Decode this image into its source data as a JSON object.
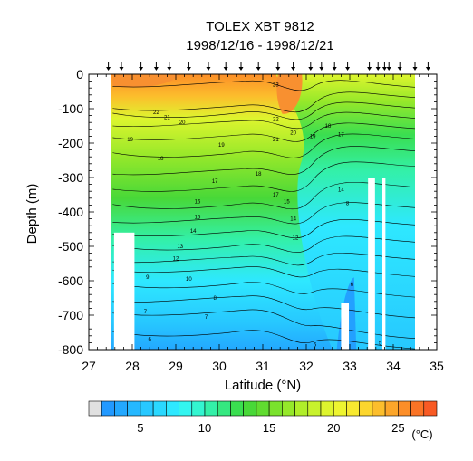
{
  "chart_data": {
    "type": "heatmap",
    "title": "TOLEX XBT 9812",
    "subtitle": "1998/12/16 - 1998/12/21",
    "xlabel": "Latitude (°N)",
    "ylabel": "Depth (m)",
    "xlim": [
      27,
      35
    ],
    "ylim": [
      -800,
      0
    ],
    "xticks": [
      27,
      28,
      29,
      30,
      31,
      32,
      33,
      34,
      35
    ],
    "yticks": [
      0,
      -100,
      -200,
      -300,
      -400,
      -500,
      -600,
      -700,
      -800
    ],
    "station_latitudes": [
      27.45,
      27.75,
      28.2,
      28.55,
      28.85,
      29.3,
      29.75,
      30.15,
      30.5,
      30.9,
      31.35,
      31.7,
      32.1,
      32.35,
      32.65,
      32.95,
      33.45,
      33.65,
      33.8,
      33.9,
      34.15,
      34.5,
      34.8
    ],
    "colorbar": {
      "unit": "(°C)",
      "min": 2,
      "max": 28,
      "step": 1,
      "ticks": [
        5,
        10,
        15,
        20,
        25
      ],
      "colors": [
        "#2299ff",
        "#23a8ff",
        "#25b8ff",
        "#27c8ff",
        "#2ad8ff",
        "#2ee8ff",
        "#33f5f0",
        "#33f5d0",
        "#33f0a8",
        "#35e880",
        "#3ade50",
        "#48d838",
        "#60dc30",
        "#7ae22c",
        "#95e82a",
        "#b0ee2a",
        "#c8f22c",
        "#def52e",
        "#eef530",
        "#f8ea30",
        "#fcd62e",
        "#fcbe2c",
        "#fca62a",
        "#fc8e28",
        "#fa7426",
        "#f85a24"
      ]
    },
    "contour_labels": [
      {
        "lat": 28.55,
        "depth": -110,
        "value": "22"
      },
      {
        "lat": 28.8,
        "depth": -125,
        "value": "21"
      },
      {
        "lat": 29.15,
        "depth": -140,
        "value": "20"
      },
      {
        "lat": 27.95,
        "depth": -190,
        "value": "19"
      },
      {
        "lat": 30.05,
        "depth": -205,
        "value": "19"
      },
      {
        "lat": 28.65,
        "depth": -245,
        "value": "18"
      },
      {
        "lat": 30.9,
        "depth": -290,
        "value": "18"
      },
      {
        "lat": 29.9,
        "depth": -310,
        "value": "17"
      },
      {
        "lat": 31.3,
        "depth": -350,
        "value": "17"
      },
      {
        "lat": 29.5,
        "depth": -370,
        "value": "16"
      },
      {
        "lat": 29.5,
        "depth": -415,
        "value": "15"
      },
      {
        "lat": 29.4,
        "depth": -455,
        "value": "14"
      },
      {
        "lat": 29.1,
        "depth": -500,
        "value": "13"
      },
      {
        "lat": 29.0,
        "depth": -535,
        "value": "12"
      },
      {
        "lat": 29.3,
        "depth": -595,
        "value": "10"
      },
      {
        "lat": 28.35,
        "depth": -590,
        "value": "9"
      },
      {
        "lat": 29.9,
        "depth": -650,
        "value": "8"
      },
      {
        "lat": 28.3,
        "depth": -690,
        "value": "7"
      },
      {
        "lat": 29.7,
        "depth": -705,
        "value": "7"
      },
      {
        "lat": 28.4,
        "depth": -770,
        "value": "6"
      },
      {
        "lat": 31.3,
        "depth": -130,
        "value": "22"
      },
      {
        "lat": 31.7,
        "depth": -170,
        "value": "20"
      },
      {
        "lat": 31.3,
        "depth": -190,
        "value": "21"
      },
      {
        "lat": 32.5,
        "depth": -150,
        "value": "18"
      },
      {
        "lat": 32.8,
        "depth": -175,
        "value": "17"
      },
      {
        "lat": 32.15,
        "depth": -180,
        "value": "19"
      },
      {
        "lat": 31.55,
        "depth": -370,
        "value": "15"
      },
      {
        "lat": 31.7,
        "depth": -420,
        "value": "14"
      },
      {
        "lat": 31.75,
        "depth": -475,
        "value": "12"
      },
      {
        "lat": 32.8,
        "depth": -335,
        "value": "14"
      },
      {
        "lat": 32.95,
        "depth": -375,
        "value": "8"
      },
      {
        "lat": 33.05,
        "depth": -610,
        "value": "6"
      },
      {
        "lat": 32.2,
        "depth": -785,
        "value": "6"
      },
      {
        "lat": 33.7,
        "depth": -780,
        "value": "5"
      },
      {
        "lat": 31.3,
        "depth": -30,
        "value": "23"
      }
    ]
  }
}
